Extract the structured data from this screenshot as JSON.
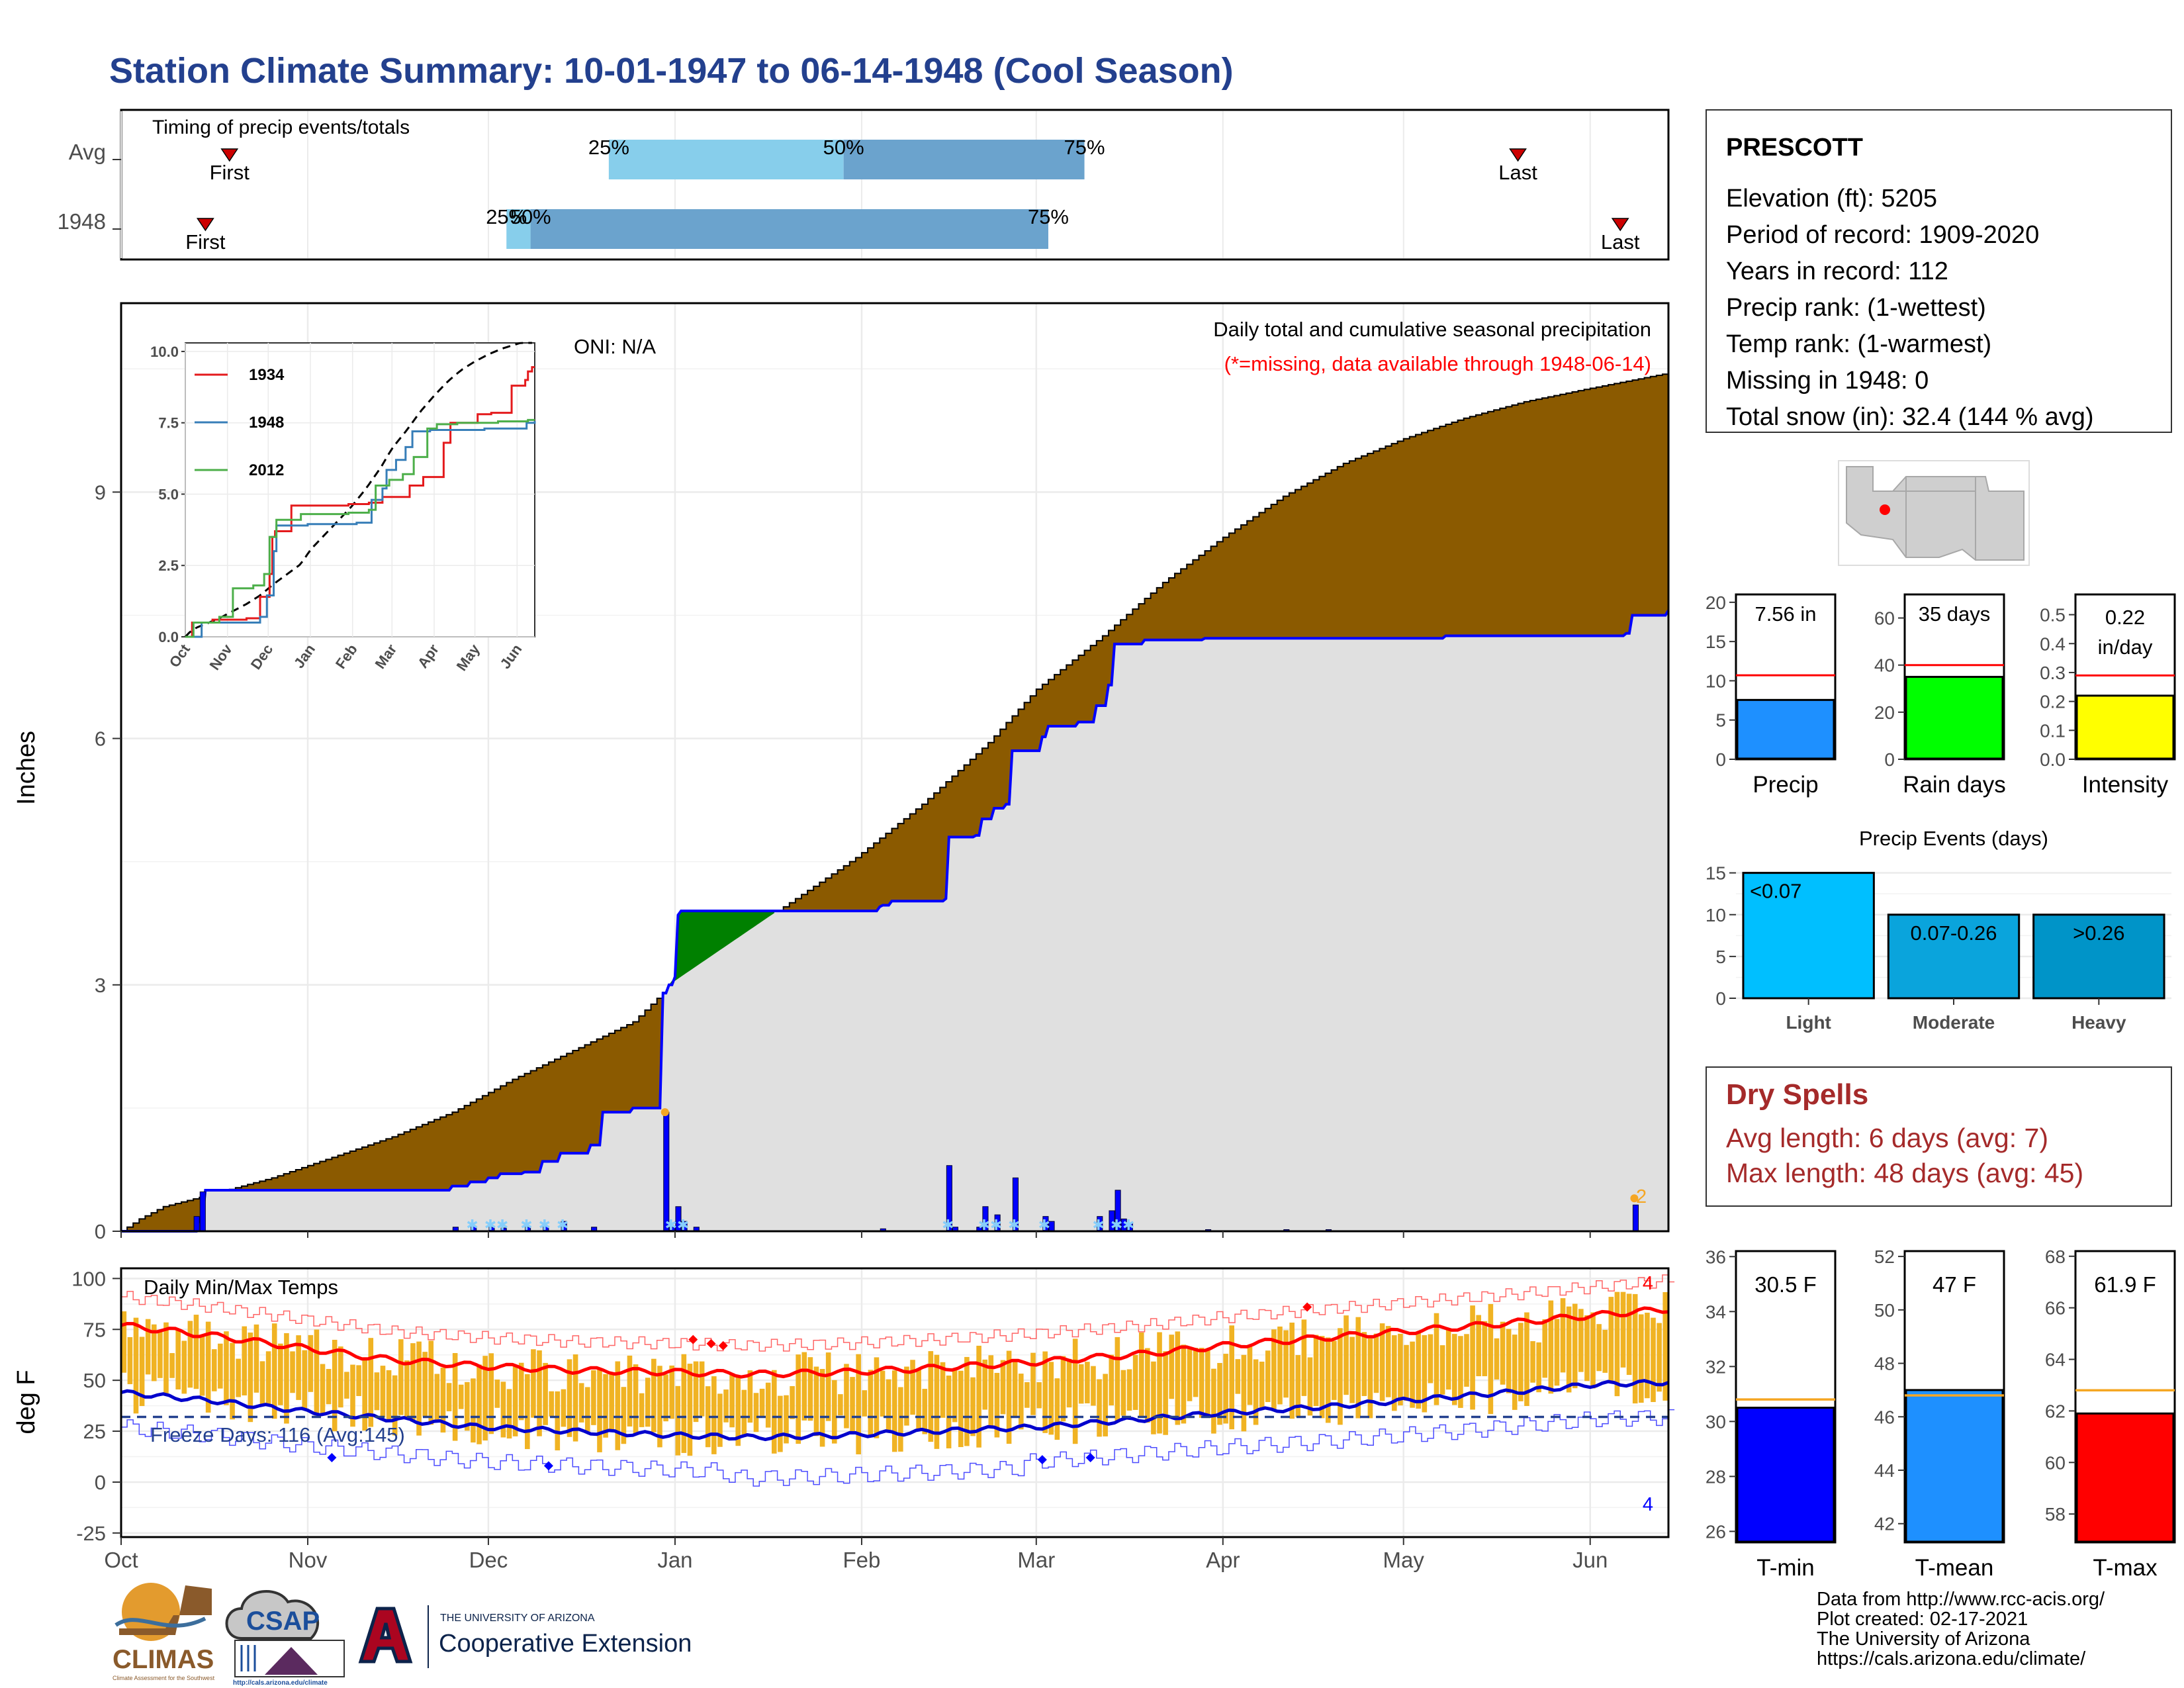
{
  "title": "Station Climate Summary: 10-01-1947 to 06-14-1948 (Cool Season)",
  "colors": {
    "title": "#23408e",
    "accum_fill": "#8b5a00",
    "surplus_fill": "#008000",
    "current_line": "#0000ff",
    "current_fill": "#e0e0e0",
    "temp_bar": "#f0b323",
    "avg_max": "#ff0000",
    "avg_min": "#0000cc",
    "dry_spells": "#a52a2a"
  },
  "timing": {
    "title": "Timing of precip events/totals",
    "rows": [
      {
        "label": "Avg",
        "first_day": 18,
        "last_day": 232,
        "q25_day": 81,
        "q50_day": 120,
        "q75_day": 160,
        "first_label": "First",
        "last_label": "Last",
        "q25_label": "25%",
        "q50_label": "50%",
        "q75_label": "75%"
      },
      {
        "label": "1948",
        "first_day": 14,
        "last_day": 249,
        "q25_day": 64,
        "q50_day": 68,
        "q75_day": 154,
        "first_label": "First",
        "last_label": "Last",
        "q25_label": "25%",
        "q50_label": "50%",
        "q75_label": "75%"
      }
    ],
    "colors": {
      "q25_50": "#87ceeb",
      "q50_75": "#6ba3cd"
    }
  },
  "precip_panel": {
    "ylabel": "Inches",
    "ylim": [
      0,
      11.3
    ],
    "yticks": [
      0,
      3,
      6,
      9
    ],
    "oni_label": "ONI: N/A",
    "subtitle": "Daily total and cumulative seasonal precipitation",
    "missing_note": "(*=missing, data available through 1948-06-14)",
    "extreme_count_label": "2"
  },
  "temp_panel": {
    "title": "Daily Min/Max Temps",
    "ylabel": "deg F",
    "ylim": [
      -27,
      105
    ],
    "yticks": [
      -25,
      0,
      25,
      50,
      75,
      100
    ],
    "freeze_label": "Freeze Days: 116 (Avg:145)",
    "freeze_line": 32,
    "count_high": "4",
    "count_low": "4"
  },
  "x_axis": {
    "months": [
      "Oct",
      "Nov",
      "Dec",
      "Jan",
      "Feb",
      "Mar",
      "Apr",
      "May",
      "Jun"
    ],
    "month_start_days": [
      0,
      31,
      61,
      92,
      123,
      152,
      183,
      213,
      244
    ],
    "total_days": 257
  },
  "station": {
    "name": "PRESCOTT",
    "lines": [
      "Elevation (ft): 5205",
      "Period of record: 1909-2020",
      "Years in record: 112",
      "Precip rank:  (1-wettest)",
      "Temp rank:  (1-warmest)",
      "Missing in 1948: 0",
      "Total snow (in): 32.4 (144 % avg)"
    ]
  },
  "summary_bars": [
    {
      "label": "Precip",
      "value_text": "7.56 in",
      "value": 7.56,
      "avg": 10.7,
      "ylim": [
        0,
        21
      ],
      "yticks": [
        0,
        5,
        10,
        15,
        20
      ],
      "color": "#1e90ff"
    },
    {
      "label": "Rain days",
      "value_text": "35 days",
      "value": 35,
      "avg": 40,
      "ylim": [
        0,
        70
      ],
      "yticks": [
        0,
        20,
        40,
        60
      ],
      "color": "#00ff00"
    },
    {
      "label": "Intensity",
      "value_text": "0.22 in/day",
      "value": 0.22,
      "avg": 0.29,
      "ylim": [
        0,
        0.57
      ],
      "yticks": [
        0.0,
        0.1,
        0.2,
        0.3,
        0.4,
        0.5
      ],
      "color": "#ffff00"
    }
  ],
  "precip_events": {
    "title": "Precip Events (days)",
    "ylim": [
      0,
      16
    ],
    "yticks": [
      0,
      5,
      10,
      15
    ],
    "categories": [
      "Light",
      "Moderate",
      "Heavy"
    ],
    "range_labels": [
      "<0.07",
      "0.07-0.26",
      ">0.26"
    ],
    "values": [
      15,
      10,
      10
    ],
    "colors": [
      "#00bfff",
      "#0aa4dc",
      "#0094c8"
    ]
  },
  "dry_spells": {
    "title": "Dry Spells",
    "avg_line": "Avg length: 6 days (avg: 7)",
    "max_line": "Max length: 48 days (avg: 45)"
  },
  "temp_bars": [
    {
      "label": "T-min",
      "value_text": "30.5 F",
      "value": 30.5,
      "avg": 30.8,
      "ylim": [
        25.6,
        36.2
      ],
      "yticks": [
        26,
        28,
        30,
        32,
        34,
        36
      ],
      "color": "#0000ff"
    },
    {
      "label": "T-mean",
      "value_text": "47 F",
      "value": 47.0,
      "avg": 46.8,
      "ylim": [
        41.3,
        52.2
      ],
      "yticks": [
        42,
        44,
        46,
        48,
        50,
        52
      ],
      "color": "#1e90ff"
    },
    {
      "label": "T-max",
      "value_text": "61.9 F",
      "value": 61.9,
      "avg": 62.8,
      "ylim": [
        56.9,
        68.2
      ],
      "yticks": [
        58,
        60,
        62,
        64,
        66,
        68
      ],
      "color": "#ff0000"
    }
  ],
  "inset": {
    "ylim": [
      0,
      10.3
    ],
    "yticks": [
      0.0,
      2.5,
      5.0,
      7.5,
      10.0
    ],
    "months": [
      "Oct",
      "Nov",
      "Dec",
      "Jan",
      "Feb",
      "Mar",
      "Apr",
      "May",
      "Jun"
    ],
    "series": [
      {
        "name": "1934",
        "color": "#e41a1c"
      },
      {
        "name": "1948",
        "color": "#377eb8"
      },
      {
        "name": "2012",
        "color": "#4daf4a"
      }
    ]
  },
  "footer": {
    "lines": [
      "Data from http://www.rcc-acis.org/",
      "Plot created: 02-17-2021",
      "The University of Arizona",
      "https://cals.arizona.edu/climate/"
    ],
    "logo_climas": "CLIMAS",
    "logo_climas_sub": "Climate Assessment for the Southwest",
    "logo_csap": "CSAP",
    "logo_csap_url": "http://cals.arizona.edu/climate",
    "ua_small": "THE UNIVERSITY OF ARIZONA",
    "ua_large": "Cooperative Extension"
  }
}
